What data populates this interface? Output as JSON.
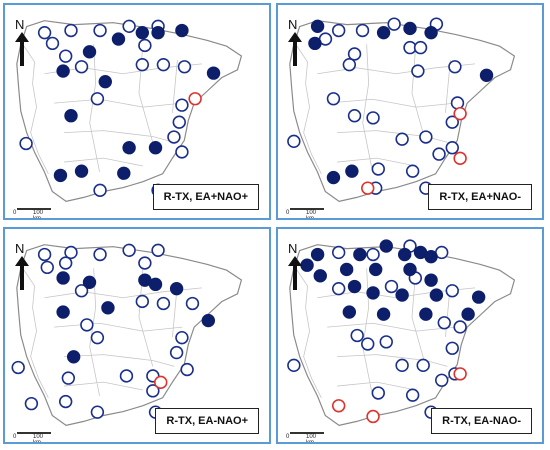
{
  "colors": {
    "filled": "#0d1f6b",
    "open": "#1a2f8a",
    "red": "#e0312b",
    "border": "#5b9bd5"
  },
  "north_label": "N",
  "scale": {
    "zero": "0",
    "km": "100 km"
  },
  "panels": [
    {
      "label": "R-TX, EA+NAO+",
      "filled": [
        [
          0.32,
          0.22
        ],
        [
          0.43,
          0.16
        ],
        [
          0.52,
          0.13
        ],
        [
          0.58,
          0.13
        ],
        [
          0.67,
          0.12
        ],
        [
          0.79,
          0.32
        ],
        [
          0.22,
          0.31
        ],
        [
          0.38,
          0.36
        ],
        [
          0.25,
          0.52
        ],
        [
          0.47,
          0.67
        ],
        [
          0.57,
          0.67
        ],
        [
          0.21,
          0.8
        ],
        [
          0.29,
          0.78
        ],
        [
          0.45,
          0.79
        ]
      ],
      "open": [
        [
          0.15,
          0.13
        ],
        [
          0.25,
          0.12
        ],
        [
          0.36,
          0.12
        ],
        [
          0.47,
          0.1
        ],
        [
          0.58,
          0.1
        ],
        [
          0.18,
          0.18
        ],
        [
          0.23,
          0.24
        ],
        [
          0.53,
          0.19
        ],
        [
          0.29,
          0.29
        ],
        [
          0.52,
          0.28
        ],
        [
          0.6,
          0.28
        ],
        [
          0.68,
          0.29
        ],
        [
          0.35,
          0.44
        ],
        [
          0.67,
          0.47
        ],
        [
          0.66,
          0.55
        ],
        [
          0.64,
          0.62
        ],
        [
          0.08,
          0.65
        ],
        [
          0.36,
          0.87
        ],
        [
          0.58,
          0.87
        ],
        [
          0.67,
          0.69
        ]
      ],
      "red": [
        [
          0.72,
          0.44
        ]
      ]
    },
    {
      "label": "R-TX, EA+NAO-",
      "filled": [
        [
          0.15,
          0.1
        ],
        [
          0.4,
          0.13
        ],
        [
          0.5,
          0.11
        ],
        [
          0.58,
          0.13
        ],
        [
          0.14,
          0.18
        ],
        [
          0.79,
          0.33
        ],
        [
          0.21,
          0.81
        ],
        [
          0.28,
          0.78
        ]
      ],
      "open": [
        [
          0.23,
          0.12
        ],
        [
          0.32,
          0.12
        ],
        [
          0.44,
          0.09
        ],
        [
          0.6,
          0.09
        ],
        [
          0.18,
          0.16
        ],
        [
          0.29,
          0.23
        ],
        [
          0.5,
          0.2
        ],
        [
          0.54,
          0.2
        ],
        [
          0.27,
          0.28
        ],
        [
          0.53,
          0.31
        ],
        [
          0.67,
          0.29
        ],
        [
          0.21,
          0.44
        ],
        [
          0.29,
          0.52
        ],
        [
          0.36,
          0.53
        ],
        [
          0.68,
          0.46
        ],
        [
          0.66,
          0.55
        ],
        [
          0.47,
          0.63
        ],
        [
          0.56,
          0.62
        ],
        [
          0.61,
          0.7
        ],
        [
          0.66,
          0.67
        ],
        [
          0.06,
          0.64
        ],
        [
          0.38,
          0.77
        ],
        [
          0.51,
          0.78
        ],
        [
          0.37,
          0.86
        ],
        [
          0.56,
          0.86
        ]
      ],
      "red": [
        [
          0.69,
          0.51
        ],
        [
          0.69,
          0.72
        ],
        [
          0.34,
          0.86
        ]
      ]
    },
    {
      "label": "R-TX, EA-NAO+",
      "filled": [
        [
          0.22,
          0.23
        ],
        [
          0.32,
          0.25
        ],
        [
          0.53,
          0.24
        ],
        [
          0.57,
          0.26
        ],
        [
          0.22,
          0.39
        ],
        [
          0.39,
          0.37
        ],
        [
          0.65,
          0.28
        ],
        [
          0.77,
          0.43
        ],
        [
          0.26,
          0.6
        ]
      ],
      "open": [
        [
          0.15,
          0.12
        ],
        [
          0.25,
          0.11
        ],
        [
          0.36,
          0.12
        ],
        [
          0.47,
          0.1
        ],
        [
          0.58,
          0.1
        ],
        [
          0.16,
          0.18
        ],
        [
          0.23,
          0.16
        ],
        [
          0.53,
          0.16
        ],
        [
          0.29,
          0.29
        ],
        [
          0.52,
          0.34
        ],
        [
          0.6,
          0.35
        ],
        [
          0.71,
          0.35
        ],
        [
          0.31,
          0.45
        ],
        [
          0.35,
          0.51
        ],
        [
          0.24,
          0.7
        ],
        [
          0.67,
          0.51
        ],
        [
          0.65,
          0.58
        ],
        [
          0.46,
          0.69
        ],
        [
          0.56,
          0.69
        ],
        [
          0.56,
          0.76
        ],
        [
          0.35,
          0.86
        ],
        [
          0.57,
          0.86
        ],
        [
          0.23,
          0.81
        ],
        [
          0.1,
          0.82
        ],
        [
          0.05,
          0.65
        ],
        [
          0.69,
          0.66
        ]
      ],
      "red": [
        [
          0.59,
          0.72
        ]
      ]
    },
    {
      "label": "R-TX, EA-NAO-",
      "filled": [
        [
          0.15,
          0.12
        ],
        [
          0.31,
          0.12
        ],
        [
          0.41,
          0.08
        ],
        [
          0.48,
          0.12
        ],
        [
          0.54,
          0.11
        ],
        [
          0.58,
          0.13
        ],
        [
          0.11,
          0.17
        ],
        [
          0.16,
          0.22
        ],
        [
          0.26,
          0.19
        ],
        [
          0.37,
          0.19
        ],
        [
          0.5,
          0.19
        ],
        [
          0.58,
          0.24
        ],
        [
          0.29,
          0.27
        ],
        [
          0.36,
          0.3
        ],
        [
          0.47,
          0.31
        ],
        [
          0.6,
          0.31
        ],
        [
          0.76,
          0.32
        ],
        [
          0.27,
          0.39
        ],
        [
          0.4,
          0.4
        ],
        [
          0.56,
          0.4
        ],
        [
          0.72,
          0.4
        ]
      ],
      "open": [
        [
          0.23,
          0.11
        ],
        [
          0.36,
          0.12
        ],
        [
          0.5,
          0.08
        ],
        [
          0.62,
          0.11
        ],
        [
          0.23,
          0.28
        ],
        [
          0.43,
          0.27
        ],
        [
          0.52,
          0.23
        ],
        [
          0.66,
          0.29
        ],
        [
          0.63,
          0.44
        ],
        [
          0.3,
          0.5
        ],
        [
          0.34,
          0.54
        ],
        [
          0.41,
          0.53
        ],
        [
          0.69,
          0.46
        ],
        [
          0.66,
          0.56
        ],
        [
          0.47,
          0.64
        ],
        [
          0.55,
          0.64
        ],
        [
          0.62,
          0.71
        ],
        [
          0.67,
          0.68
        ],
        [
          0.06,
          0.64
        ],
        [
          0.38,
          0.77
        ],
        [
          0.51,
          0.78
        ],
        [
          0.58,
          0.86
        ]
      ],
      "red": [
        [
          0.69,
          0.68
        ],
        [
          0.23,
          0.83
        ],
        [
          0.36,
          0.88
        ]
      ]
    }
  ]
}
